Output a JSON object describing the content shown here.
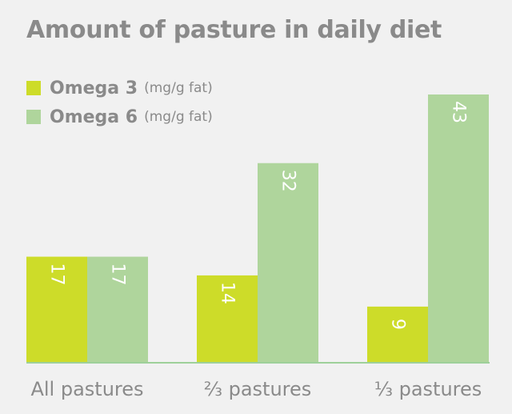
{
  "colors": {
    "background": "#f1f1f1",
    "omega3": "#cddc29",
    "omega6": "#afd59c",
    "baseline": "#9ed09a",
    "text": "#8a8a8a",
    "bar_label": "#ffffff"
  },
  "chart_data": {
    "type": "bar",
    "title": "Amount of pasture in daily diet",
    "categories": [
      "All pastures",
      "⅔ pastures",
      "⅓ pastures"
    ],
    "series": [
      {
        "name": "Omega 3",
        "unit": "(mg/g fat)",
        "values": [
          17,
          14,
          9
        ]
      },
      {
        "name": "Omega 6",
        "unit": "(mg/g fat)",
        "values": [
          17,
          32,
          43
        ]
      }
    ],
    "data_labels": true,
    "ylim": [
      0,
      43
    ],
    "grid": false,
    "legend_position": "top-left"
  }
}
